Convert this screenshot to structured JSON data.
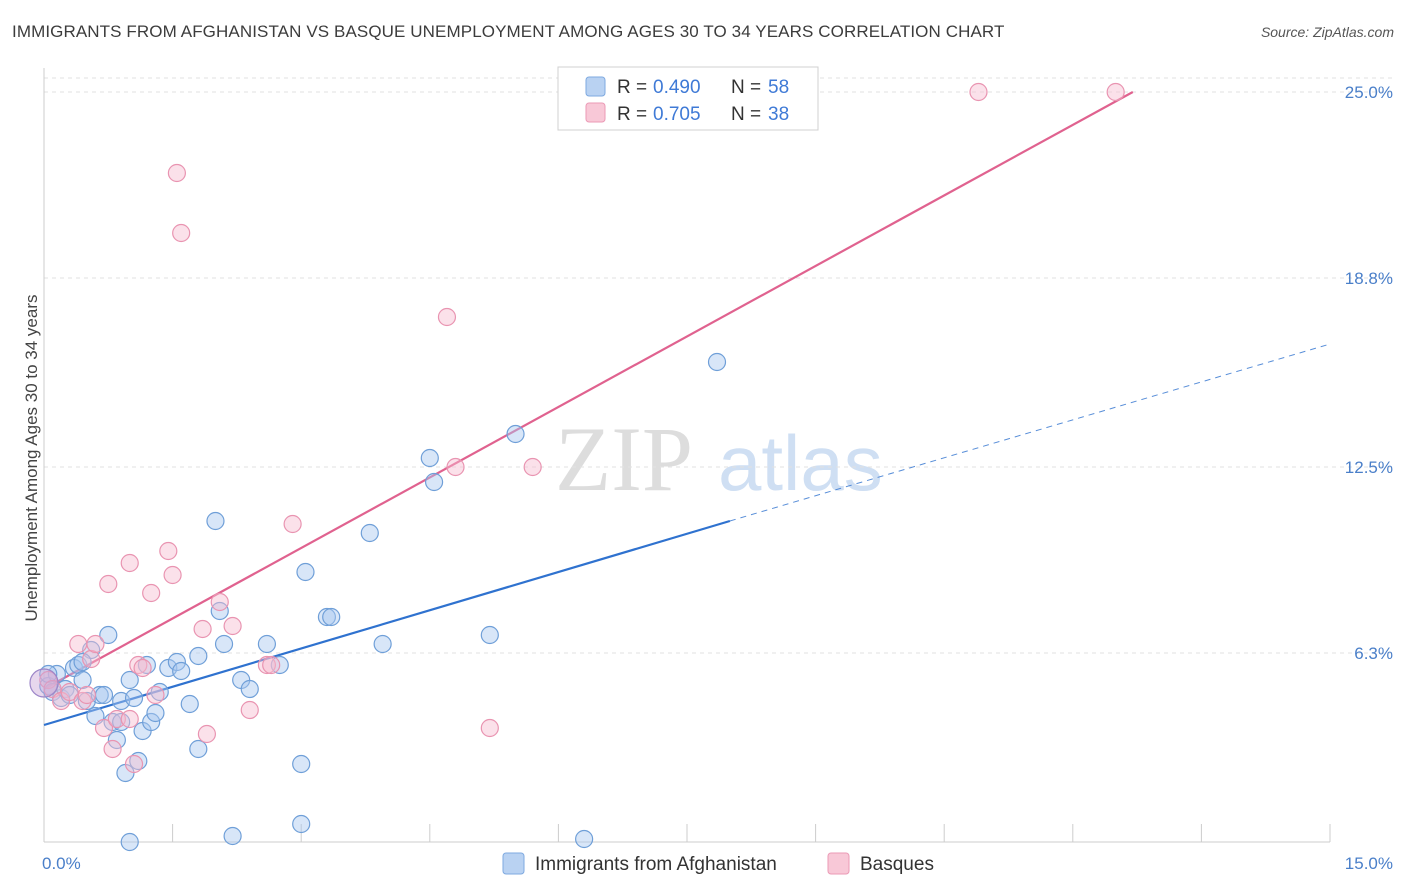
{
  "title": "IMMIGRANTS FROM AFGHANISTAN VS BASQUE UNEMPLOYMENT AMONG AGES 30 TO 34 YEARS CORRELATION CHART",
  "source": "Source: ZipAtlas.com",
  "watermark": {
    "zip": "ZIP",
    "atlas": "atlas"
  },
  "chart_data": {
    "type": "scatter",
    "xlabel": "",
    "ylabel": "Unemployment Among Ages 30 to 34 years",
    "xlim": [
      0,
      15
    ],
    "ylim": [
      0,
      25.8
    ],
    "x_ticks": [
      0,
      1.5,
      3,
      4.5,
      6,
      7.5,
      9,
      10.5,
      12,
      13.5,
      15
    ],
    "x_tick_labels": {
      "first": "0.0%",
      "last": "15.0%"
    },
    "y_ticks": [
      6.3,
      12.5,
      18.8,
      25.0
    ],
    "y_tick_labels": [
      "6.3%",
      "12.5%",
      "18.8%",
      "25.0%"
    ],
    "grid": true,
    "legend": {
      "position": "top-center",
      "entries": [
        {
          "r_label": "R =",
          "r": "0.490",
          "n_label": "N =",
          "n": "58"
        },
        {
          "r_label": "R =",
          "r": "0.705",
          "n_label": "N =",
          "n": "38"
        }
      ]
    },
    "series": [
      {
        "name": "Immigrants from Afghanistan",
        "color": "#a8c8f0",
        "stroke": "#6f9fd8",
        "line_color": "#2f72cf",
        "trend": {
          "x0": 0,
          "y0": 3.9,
          "x1": 8.0,
          "y1": 10.7,
          "dash_to_x": 15,
          "dash_to_y": 16.6
        },
        "points": [
          [
            0.05,
            5.2
          ],
          [
            0.1,
            5.0
          ],
          [
            0.15,
            5.6
          ],
          [
            0.2,
            4.8
          ],
          [
            0.25,
            5.1
          ],
          [
            0.3,
            4.9
          ],
          [
            0.35,
            5.8
          ],
          [
            0.4,
            5.9
          ],
          [
            0.45,
            5.4
          ],
          [
            0.5,
            4.7
          ],
          [
            0.55,
            6.4
          ],
          [
            0.6,
            4.2
          ],
          [
            0.65,
            4.9
          ],
          [
            0.7,
            4.9
          ],
          [
            0.75,
            6.9
          ],
          [
            0.8,
            4.0
          ],
          [
            0.85,
            3.4
          ],
          [
            0.9,
            4.7
          ],
          [
            0.9,
            4.0
          ],
          [
            0.95,
            2.3
          ],
          [
            1.0,
            5.4
          ],
          [
            1.05,
            4.8
          ],
          [
            1.1,
            2.7
          ],
          [
            1.15,
            3.7
          ],
          [
            1.2,
            5.9
          ],
          [
            1.25,
            4.0
          ],
          [
            1.3,
            4.3
          ],
          [
            1.35,
            5.0
          ],
          [
            1.45,
            5.8
          ],
          [
            1.55,
            6.0
          ],
          [
            1.6,
            5.7
          ],
          [
            1.7,
            4.6
          ],
          [
            1.8,
            6.2
          ],
          [
            1.8,
            3.1
          ],
          [
            2.0,
            10.7
          ],
          [
            2.05,
            7.7
          ],
          [
            2.1,
            6.6
          ],
          [
            2.2,
            0.2
          ],
          [
            2.3,
            5.4
          ],
          [
            2.4,
            5.1
          ],
          [
            2.6,
            6.6
          ],
          [
            2.75,
            5.9
          ],
          [
            3.0,
            0.6
          ],
          [
            3.05,
            9.0
          ],
          [
            3.3,
            7.5
          ],
          [
            3.35,
            7.5
          ],
          [
            3.8,
            10.3
          ],
          [
            3.95,
            6.6
          ],
          [
            4.5,
            12.8
          ],
          [
            4.55,
            12.0
          ],
          [
            5.2,
            6.9
          ],
          [
            5.5,
            13.6
          ],
          [
            6.3,
            0.1
          ],
          [
            7.85,
            16.0
          ],
          [
            0.05,
            5.6
          ],
          [
            3.0,
            2.6
          ],
          [
            0.45,
            6.0
          ],
          [
            1.0,
            0.0
          ]
        ]
      },
      {
        "name": "Basques",
        "color": "#f6bcd0",
        "stroke": "#e994b1",
        "line_color": "#e0628f",
        "trend": {
          "x0": 0,
          "y0": 5.1,
          "x1": 12.7,
          "y1": 25.0
        },
        "points": [
          [
            0.05,
            5.4
          ],
          [
            0.1,
            5.1
          ],
          [
            0.2,
            4.7
          ],
          [
            0.3,
            5.0
          ],
          [
            0.4,
            6.6
          ],
          [
            0.45,
            4.7
          ],
          [
            0.5,
            4.9
          ],
          [
            0.55,
            6.1
          ],
          [
            0.6,
            6.6
          ],
          [
            0.7,
            3.8
          ],
          [
            0.75,
            8.6
          ],
          [
            0.8,
            3.1
          ],
          [
            0.85,
            4.1
          ],
          [
            1.0,
            9.3
          ],
          [
            1.05,
            2.6
          ],
          [
            1.1,
            5.9
          ],
          [
            1.15,
            5.8
          ],
          [
            1.25,
            8.3
          ],
          [
            1.3,
            4.9
          ],
          [
            1.45,
            9.7
          ],
          [
            1.5,
            8.9
          ],
          [
            1.55,
            22.3
          ],
          [
            1.6,
            20.3
          ],
          [
            1.85,
            7.1
          ],
          [
            1.9,
            3.6
          ],
          [
            2.05,
            8.0
          ],
          [
            2.2,
            7.2
          ],
          [
            2.4,
            4.4
          ],
          [
            2.6,
            5.9
          ],
          [
            2.65,
            5.9
          ],
          [
            2.9,
            10.6
          ],
          [
            4.7,
            17.5
          ],
          [
            4.8,
            12.5
          ],
          [
            5.2,
            3.8
          ],
          [
            5.7,
            12.5
          ],
          [
            10.9,
            25.0
          ],
          [
            12.5,
            25.0
          ],
          [
            1.0,
            4.1
          ]
        ]
      }
    ]
  },
  "bottom_legend": {
    "afghanistan": "Immigrants from Afghanistan",
    "basques": "Basques"
  }
}
